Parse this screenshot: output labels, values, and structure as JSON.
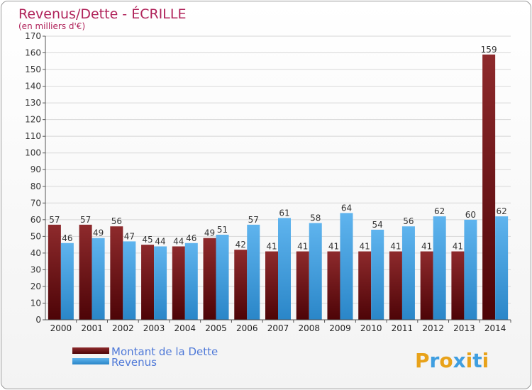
{
  "chart_data": {
    "type": "bar",
    "title": "Revenus/Dette - ÉCRILLE",
    "subtitle": "(en milliers d'€)",
    "categories": [
      "2000",
      "2001",
      "2002",
      "2003",
      "2004",
      "2005",
      "2006",
      "2007",
      "2008",
      "2009",
      "2010",
      "2011",
      "2012",
      "2013",
      "2014"
    ],
    "series": [
      {
        "name": "Montant de la Dette",
        "color": "#7a1518",
        "values": [
          57,
          57,
          56,
          45,
          44,
          49,
          42,
          41,
          41,
          41,
          41,
          41,
          41,
          41,
          159
        ]
      },
      {
        "name": "Revenus",
        "color": "#3f9ee0",
        "values": [
          46,
          49,
          47,
          44,
          46,
          51,
          57,
          61,
          58,
          64,
          54,
          56,
          62,
          60,
          62
        ]
      }
    ],
    "ylim": [
      0,
      170
    ],
    "yticks": [
      0,
      10,
      20,
      30,
      40,
      50,
      60,
      70,
      80,
      90,
      100,
      110,
      120,
      130,
      140,
      150,
      160,
      170
    ],
    "xlabel": "",
    "ylabel": "",
    "grid": true,
    "legend_position": "bottom-left"
  },
  "brand": {
    "letters": [
      "P",
      "r",
      "o",
      "x",
      "i",
      "t",
      "i"
    ],
    "colors": [
      "#e8a21a",
      "#3f9ee0",
      "#e8a21a",
      "#3f9ee0",
      "#e8a21a",
      "#3f9ee0",
      "#e8a21a"
    ]
  }
}
